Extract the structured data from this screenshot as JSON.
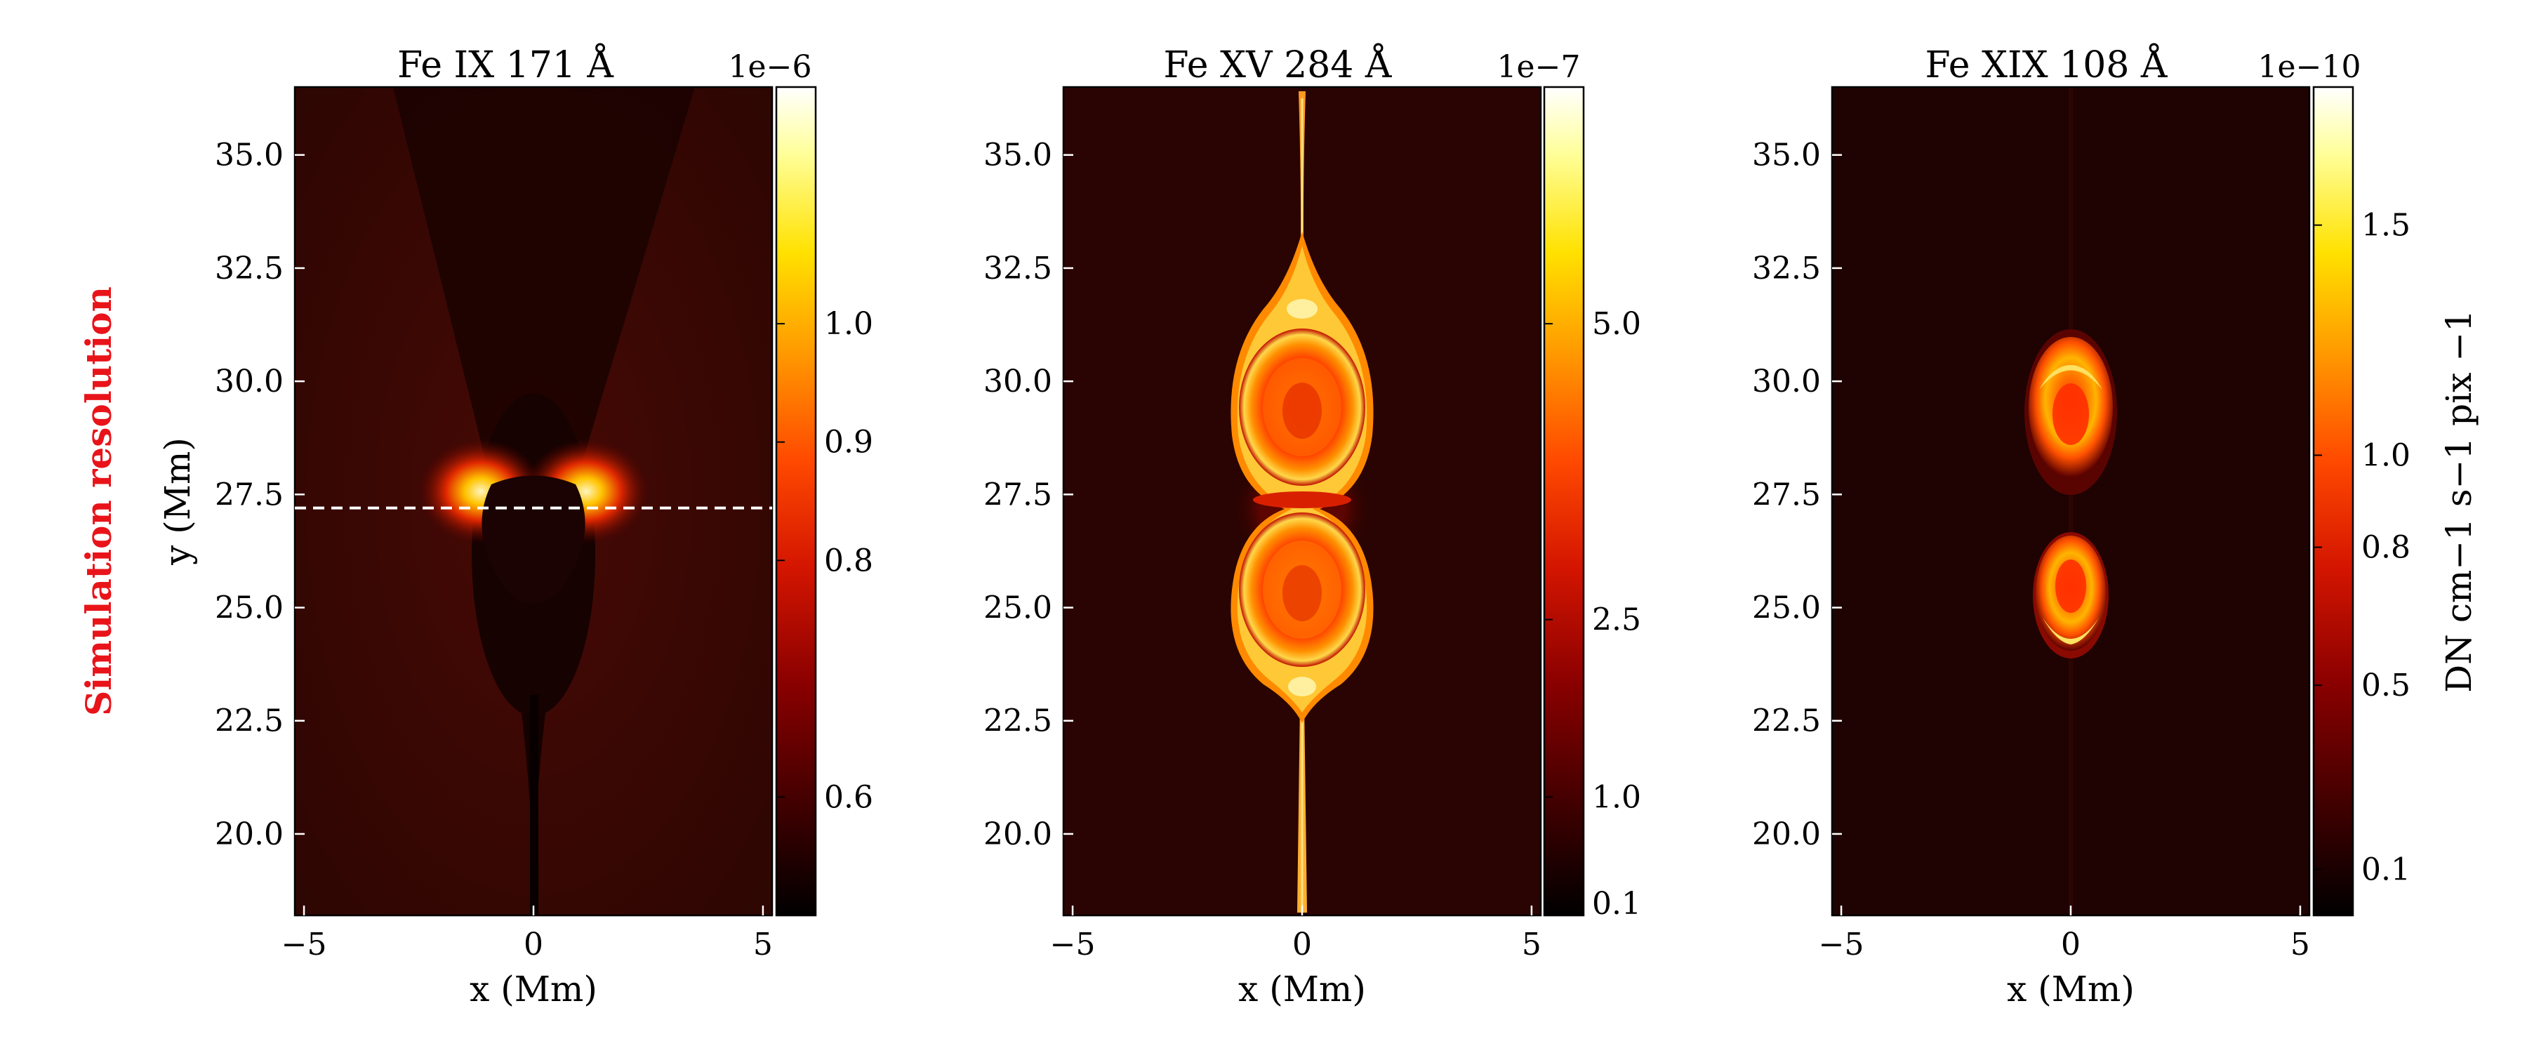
{
  "row_label": "Simulation resolution",
  "colormap": [
    "#000000",
    "#3a0000",
    "#8a0000",
    "#d41500",
    "#ff4a00",
    "#ff9a00",
    "#ffe100",
    "#ffff9a",
    "#ffffff"
  ],
  "overlay_color": "#ffffff",
  "chart_data": [
    {
      "type": "heatmap",
      "title": "Fe IX 171 Å",
      "xlabel": "x (Mm)",
      "ylabel": "y (Mm)",
      "xlim": [
        -5.2,
        5.2
      ],
      "ylim": [
        18.2,
        36.5
      ],
      "xticks": [
        -5,
        0,
        5
      ],
      "yticks": [
        20.0,
        22.5,
        25.0,
        27.5,
        30.0,
        32.5,
        35.0
      ],
      "overlay_line_y": 27.2,
      "colorbar": {
        "exponent": "1e−6",
        "range": [
          0.5,
          1.2
        ],
        "ticks": [
          0.6,
          0.8,
          0.9,
          1.0
        ],
        "label": ""
      }
    },
    {
      "type": "heatmap",
      "title": "Fe XV 284 Å",
      "xlabel": "x (Mm)",
      "ylabel": "",
      "xlim": [
        -5.2,
        5.2
      ],
      "ylim": [
        18.2,
        36.5
      ],
      "xticks": [
        -5,
        0,
        5
      ],
      "yticks": [
        20.0,
        22.5,
        25.0,
        27.5,
        30.0,
        32.5,
        35.0
      ],
      "colorbar": {
        "exponent": "1e−7",
        "range": [
          0.0,
          7.0
        ],
        "ticks": [
          0.1,
          1.0,
          2.5,
          5.0
        ],
        "label": ""
      }
    },
    {
      "type": "heatmap",
      "title": "Fe XIX 108 Å",
      "xlabel": "x (Mm)",
      "ylabel": "",
      "xlim": [
        -5.2,
        5.2
      ],
      "ylim": [
        18.2,
        36.5
      ],
      "xticks": [
        -5,
        0,
        5
      ],
      "yticks": [
        20.0,
        22.5,
        25.0,
        27.5,
        30.0,
        32.5,
        35.0
      ],
      "colorbar": {
        "exponent": "1e−10",
        "range": [
          0.0,
          1.8
        ],
        "ticks": [
          0.1,
          0.5,
          0.8,
          1.0,
          1.5
        ],
        "label": "DN cm−1 s−1 pix −1"
      }
    }
  ]
}
